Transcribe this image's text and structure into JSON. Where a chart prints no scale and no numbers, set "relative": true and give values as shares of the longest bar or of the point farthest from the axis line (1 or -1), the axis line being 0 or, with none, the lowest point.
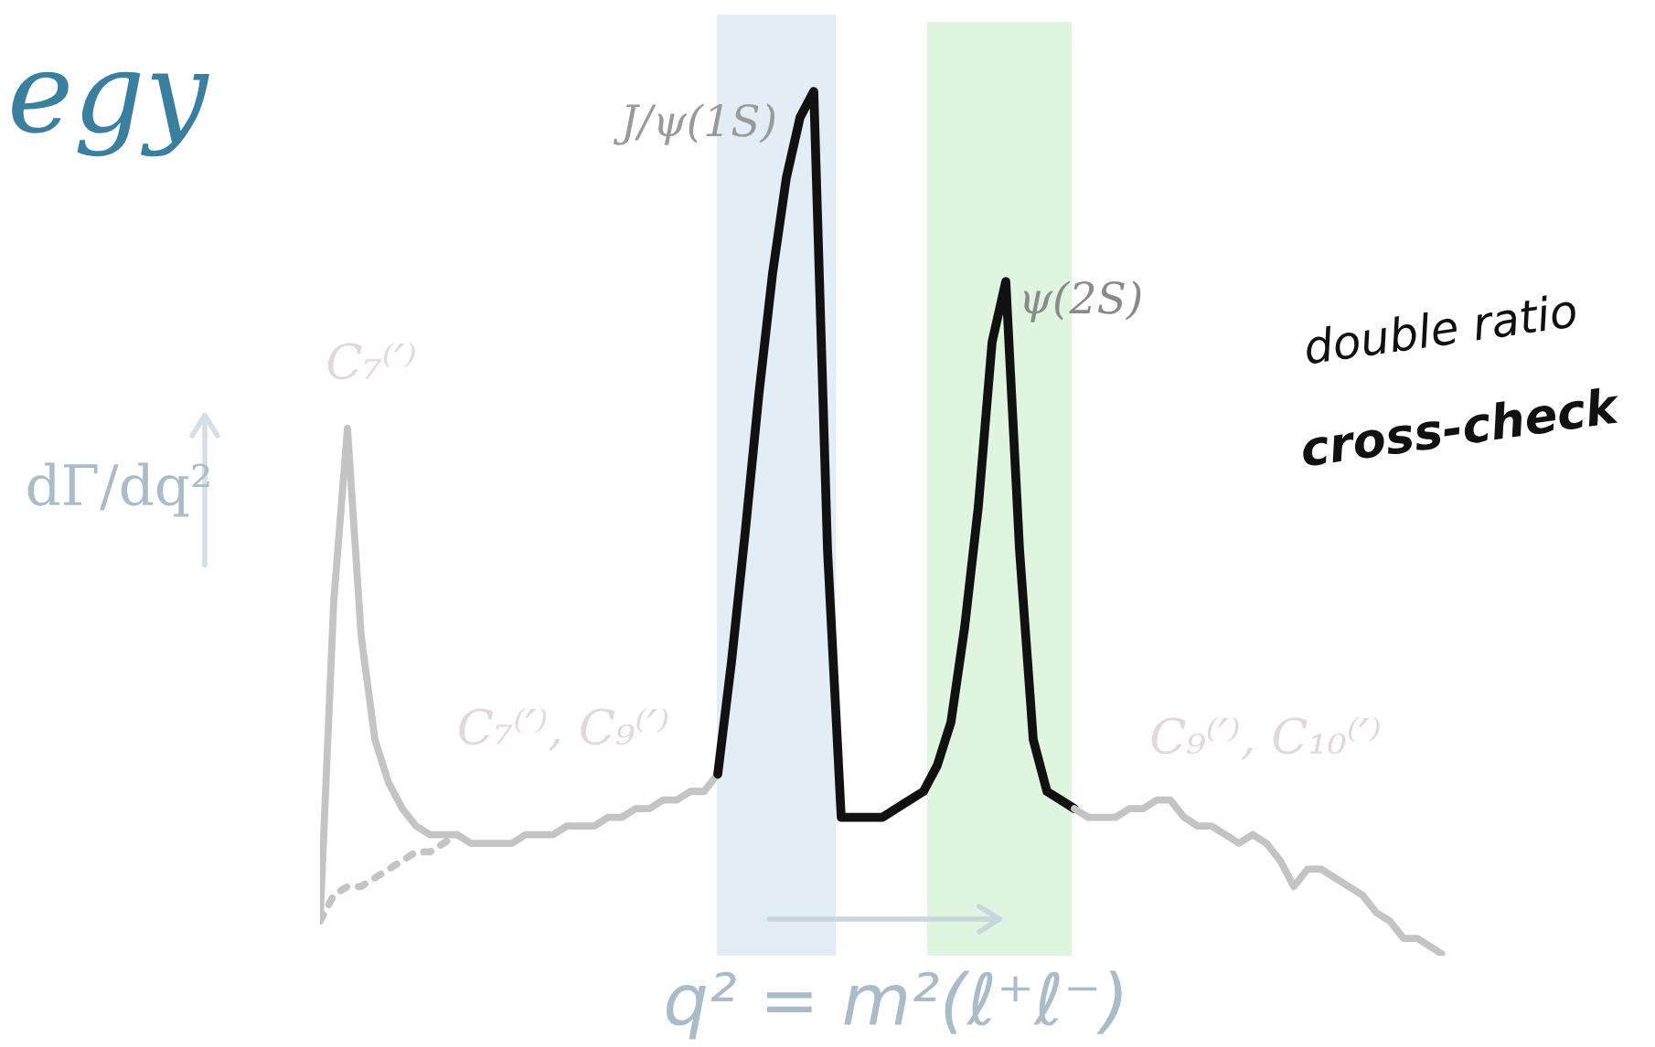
{
  "chart_data": {
    "type": "line",
    "relative": true,
    "title": "egy",
    "xlabel": "q² = m²(ℓ⁺ℓ⁻)",
    "ylabel": "dΓ/dq²",
    "categories": [
      null,
      null,
      null,
      null,
      null,
      null,
      null,
      null,
      null,
      null,
      null,
      null,
      null,
      null,
      null,
      null,
      null,
      null,
      null,
      null,
      null,
      null,
      null,
      null,
      null,
      null,
      null,
      null,
      null,
      null,
      null,
      null,
      null,
      null,
      null,
      null,
      null,
      null,
      null,
      null,
      null,
      null,
      null,
      null,
      null,
      null,
      null,
      null,
      null,
      null,
      null,
      null,
      null,
      null,
      null,
      null,
      null,
      null,
      null,
      null,
      null,
      null,
      null,
      null,
      null,
      null,
      null,
      null,
      null,
      null,
      null,
      null,
      null,
      null,
      null,
      null,
      null,
      null,
      null,
      null,
      null,
      null,
      null
    ],
    "series": [
      {
        "color": "#c4c4c4",
        "line_style": "solid",
        "values": [
          0.04,
          0.41,
          0.61,
          0.37,
          0.25,
          0.2,
          0.17,
          0.15,
          0.14,
          0.14,
          0.14,
          0.13,
          0.13,
          0.13,
          0.13,
          0.14,
          0.14,
          0.14,
          0.15,
          0.15,
          0.15,
          0.16,
          0.16,
          0.17,
          0.17,
          0.18,
          0.18,
          0.19,
          0.19,
          0.21,
          null,
          null,
          null,
          null,
          null,
          null,
          null,
          null,
          null,
          null,
          null,
          null,
          null,
          null,
          null,
          null,
          null,
          null,
          null,
          null,
          null,
          null,
          null,
          null,
          null,
          null,
          null,
          null,
          null,
          null,
          null,
          null,
          null,
          null,
          null,
          null,
          null,
          null,
          null,
          null,
          null,
          null,
          null,
          null,
          null,
          null,
          null,
          null,
          null,
          null,
          null,
          null,
          null
        ]
      },
      {
        "color": "#c4c4c4",
        "line_style": "dotted",
        "values": [
          0.04,
          0.07,
          0.08,
          0.08,
          0.09,
          0.1,
          0.11,
          0.12,
          0.12,
          0.13,
          0.14,
          null,
          null,
          null,
          null,
          null,
          null,
          null,
          null,
          null,
          null,
          null,
          null,
          null,
          null,
          null,
          null,
          null,
          null,
          null,
          null,
          null,
          null,
          null,
          null,
          null,
          null,
          null,
          null,
          null,
          null,
          null,
          null,
          null,
          null,
          null,
          null,
          null,
          null,
          null,
          null,
          null,
          null,
          null,
          null,
          null,
          null,
          null,
          null,
          null,
          null,
          null,
          null,
          null,
          null,
          null,
          null,
          null,
          null,
          null,
          null,
          null,
          null,
          null,
          null,
          null,
          null,
          null,
          null,
          null,
          null,
          null,
          null
        ]
      },
      {
        "color": "#111111",
        "line_style": "solid",
        "values": [
          null,
          null,
          null,
          null,
          null,
          null,
          null,
          null,
          null,
          null,
          null,
          null,
          null,
          null,
          null,
          null,
          null,
          null,
          null,
          null,
          null,
          null,
          null,
          null,
          null,
          null,
          null,
          null,
          null,
          0.21,
          0.34,
          0.49,
          0.65,
          0.79,
          0.9,
          0.97,
          1.0,
          0.47,
          0.16,
          0.16,
          0.16,
          0.16,
          0.17,
          0.18,
          0.19,
          0.22,
          0.27,
          0.38,
          0.52,
          0.71,
          0.78,
          0.47,
          0.25,
          0.19,
          0.18,
          0.17,
          null,
          null,
          null,
          null,
          null,
          null,
          null,
          null,
          null,
          null,
          null,
          null,
          null,
          null,
          null,
          null,
          null,
          null,
          null,
          null,
          null,
          null,
          null,
          null,
          null,
          null,
          null
        ]
      },
      {
        "color": "#c4c4c4",
        "line_style": "solid",
        "values": [
          null,
          null,
          null,
          null,
          null,
          null,
          null,
          null,
          null,
          null,
          null,
          null,
          null,
          null,
          null,
          null,
          null,
          null,
          null,
          null,
          null,
          null,
          null,
          null,
          null,
          null,
          null,
          null,
          null,
          null,
          null,
          null,
          null,
          null,
          null,
          null,
          null,
          null,
          null,
          null,
          null,
          null,
          null,
          null,
          null,
          null,
          null,
          null,
          null,
          null,
          null,
          null,
          null,
          null,
          null,
          0.17,
          0.16,
          0.16,
          0.16,
          0.17,
          0.17,
          0.18,
          0.18,
          0.16,
          0.15,
          0.15,
          0.14,
          0.13,
          0.14,
          0.13,
          0.11,
          0.08,
          0.1,
          0.1,
          0.09,
          0.08,
          0.07,
          0.05,
          0.04,
          0.02,
          0.02,
          0.01,
          0.0
        ]
      }
    ],
    "annotations": [
      "J/ψ(1S)",
      "ψ(2S)",
      "C₇⁽′⁾",
      "C₇⁽′⁾, C₉⁽′⁾",
      "C₉⁽′⁾, C₁₀⁽′⁾",
      "double ratio",
      "cross-check"
    ]
  }
}
